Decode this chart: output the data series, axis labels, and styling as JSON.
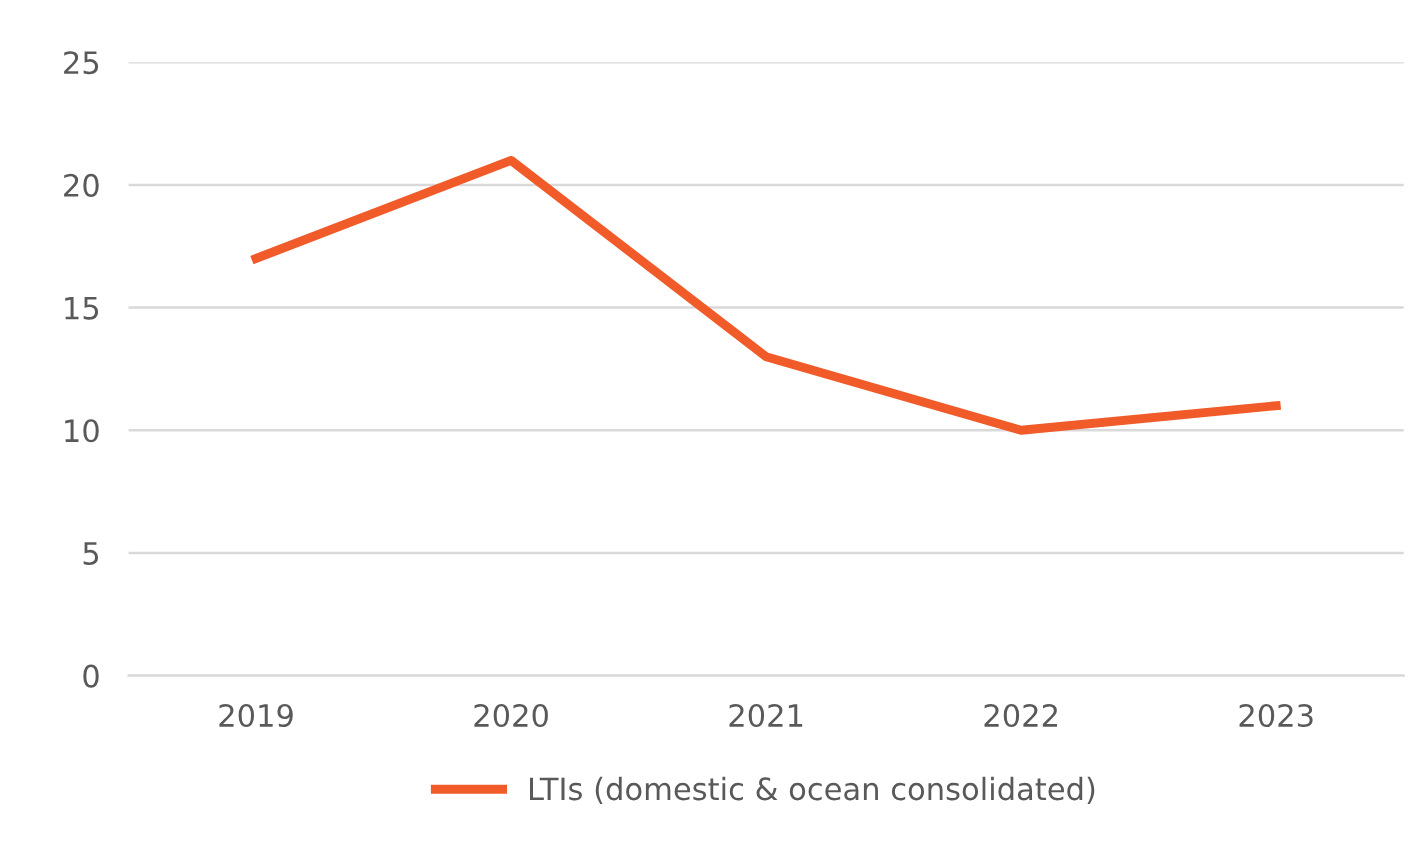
{
  "chart_data": {
    "type": "line",
    "categories": [
      "2019",
      "2020",
      "2021",
      "2022",
      "2023"
    ],
    "series": [
      {
        "name": "LTIs (domestic & ocean consolidated)",
        "color": "#f15a29",
        "values": [
          17,
          21,
          13,
          10,
          11
        ]
      }
    ],
    "ylim": [
      0,
      25
    ],
    "yticks": [
      0,
      5,
      10,
      15,
      20,
      25
    ],
    "grid": "y",
    "legend": "bottom",
    "marker": "none",
    "line_style": "solid"
  }
}
